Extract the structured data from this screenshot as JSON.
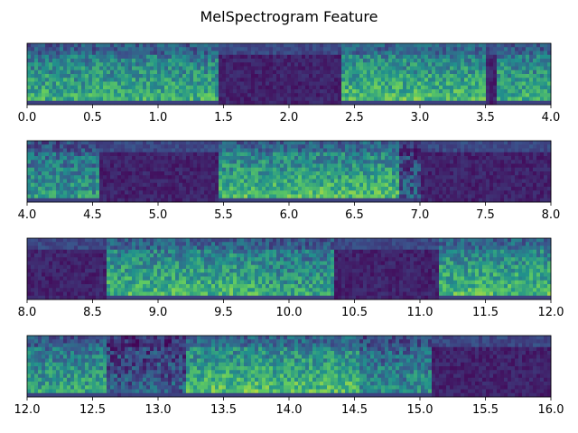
{
  "title": "MelSpectrogram Feature",
  "colormap": [
    "#440154",
    "#3b528b",
    "#21918c",
    "#5ec962",
    "#fde725"
  ],
  "chart_data": [
    {
      "type": "heatmap",
      "xlim": [
        0.0,
        4.0
      ],
      "xticks": [
        "0.0",
        "0.5",
        "1.0",
        "1.5",
        "2.0",
        "2.5",
        "3.0",
        "3.5",
        "4.0"
      ],
      "yticks": [],
      "activity": [
        [
          0.0,
          1.45,
          0.65
        ],
        [
          1.45,
          2.4,
          0.15
        ],
        [
          2.4,
          3.5,
          0.7
        ],
        [
          3.5,
          3.58,
          0.2
        ],
        [
          3.58,
          4.0,
          0.65
        ]
      ]
    },
    {
      "type": "heatmap",
      "xlim": [
        4.0,
        8.0
      ],
      "xticks": [
        "4.0",
        "4.5",
        "5.0",
        "5.5",
        "6.0",
        "6.5",
        "7.0",
        "7.5",
        "8.0"
      ],
      "yticks": [],
      "activity": [
        [
          4.0,
          4.55,
          0.55
        ],
        [
          4.55,
          5.45,
          0.15
        ],
        [
          5.45,
          6.85,
          0.7
        ],
        [
          6.85,
          7.0,
          0.3
        ],
        [
          7.0,
          8.0,
          0.12
        ]
      ]
    },
    {
      "type": "heatmap",
      "xlim": [
        8.0,
        12.0
      ],
      "xticks": [
        "8.0",
        "8.5",
        "9.0",
        "9.5",
        "10.0",
        "10.5",
        "11.0",
        "11.5",
        "12.0"
      ],
      "yticks": [],
      "activity": [
        [
          8.0,
          8.62,
          0.15
        ],
        [
          8.62,
          9.78,
          0.68
        ],
        [
          9.78,
          10.35,
          0.6
        ],
        [
          10.35,
          11.15,
          0.18
        ],
        [
          11.15,
          12.0,
          0.7
        ]
      ]
    },
    {
      "type": "heatmap",
      "xlim": [
        12.0,
        16.0
      ],
      "xticks": [
        "12.0",
        "12.5",
        "13.0",
        "13.5",
        "14.0",
        "14.5",
        "15.0",
        "15.5",
        "16.0"
      ],
      "yticks": [],
      "activity": [
        [
          12.0,
          12.62,
          0.6
        ],
        [
          12.62,
          13.22,
          0.3
        ],
        [
          13.22,
          14.55,
          0.72
        ],
        [
          14.55,
          15.1,
          0.5
        ],
        [
          15.1,
          16.0,
          0.2
        ]
      ]
    }
  ]
}
